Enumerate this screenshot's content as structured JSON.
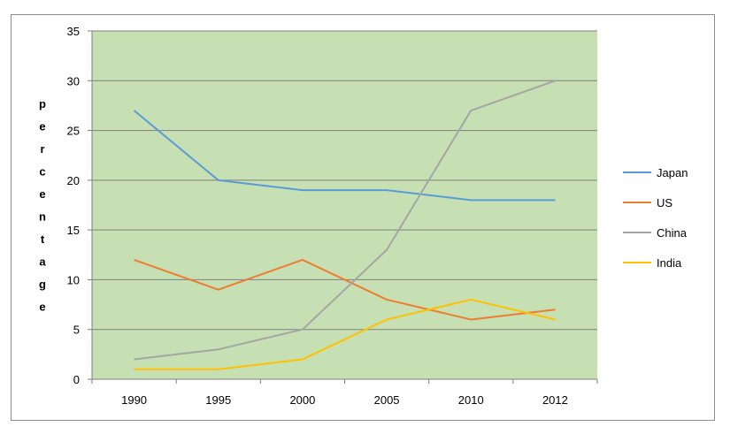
{
  "chart_data": {
    "type": "line",
    "title": "",
    "xlabel": "",
    "ylabel": "percentage",
    "categories": [
      "1990",
      "1995",
      "2000",
      "2005",
      "2010",
      "2012"
    ],
    "ylim": [
      0,
      35
    ],
    "yticks": [
      0,
      5,
      10,
      15,
      20,
      25,
      30,
      35
    ],
    "grid": true,
    "legend_position": "right",
    "plot_background": "#c6e0b4",
    "series": [
      {
        "name": "Japan",
        "color": "#5b9bd5",
        "values": [
          27,
          20,
          19,
          19,
          18,
          18
        ]
      },
      {
        "name": "US",
        "color": "#ed7d31",
        "values": [
          12,
          9,
          12,
          8,
          6,
          7
        ]
      },
      {
        "name": "China",
        "color": "#a5a5a5",
        "values": [
          2,
          3,
          5,
          13,
          27,
          30
        ]
      },
      {
        "name": "India",
        "color": "#ffc000",
        "values": [
          1,
          1,
          2,
          6,
          8,
          6
        ]
      }
    ]
  }
}
